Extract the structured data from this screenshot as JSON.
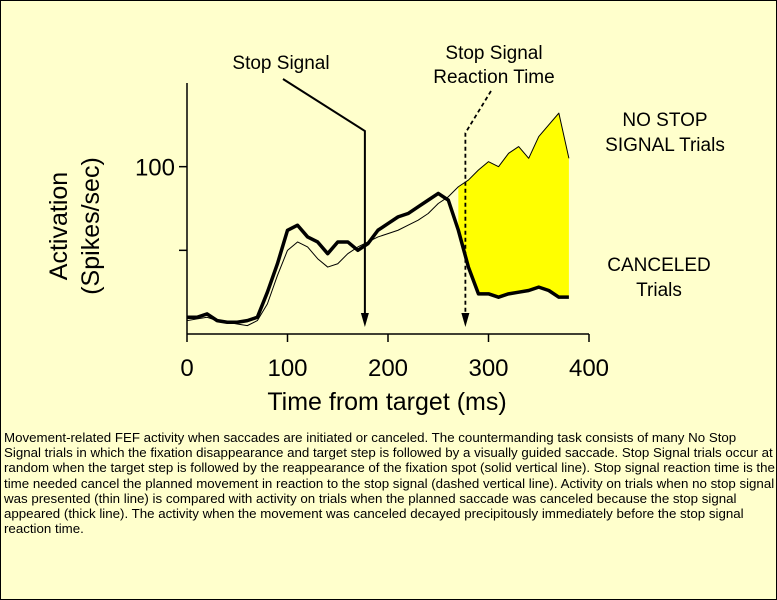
{
  "chart_data": {
    "type": "line",
    "title": "",
    "xlabel": "Time from target (ms)",
    "ylabel_line1": "Activation",
    "ylabel_line2": "(Spikes/sec)",
    "xlim": [
      0,
      400
    ],
    "ylim": [
      0,
      150
    ],
    "x_ticks": [
      0,
      100,
      200,
      300,
      400
    ],
    "x_tick_labels": [
      "0",
      "100",
      "200",
      "300",
      "400"
    ],
    "y_ticks": [
      50,
      100
    ],
    "y_tick_labels": [
      "",
      "100"
    ],
    "grid": false,
    "fill_color": "#FFFF00",
    "series": [
      {
        "name": "NO STOP SIGNAL Trials",
        "style": "thin",
        "x": [
          0,
          10,
          20,
          30,
          40,
          50,
          60,
          70,
          80,
          90,
          100,
          110,
          120,
          130,
          140,
          150,
          160,
          170,
          180,
          190,
          200,
          210,
          220,
          230,
          240,
          250,
          260,
          270,
          280,
          290,
          300,
          310,
          320,
          330,
          340,
          350,
          360,
          370,
          380
        ],
        "y": [
          8,
          9,
          10,
          8,
          7,
          6,
          5,
          8,
          18,
          35,
          50,
          55,
          52,
          45,
          40,
          42,
          48,
          52,
          55,
          58,
          60,
          62,
          65,
          68,
          72,
          78,
          82,
          88,
          92,
          98,
          103,
          100,
          108,
          112,
          105,
          118,
          125,
          132,
          105
        ]
      },
      {
        "name": "CANCELED Trials",
        "style": "thick",
        "x": [
          0,
          10,
          20,
          30,
          40,
          50,
          60,
          70,
          80,
          90,
          100,
          110,
          120,
          130,
          140,
          150,
          160,
          170,
          180,
          190,
          200,
          210,
          220,
          230,
          240,
          250,
          260,
          270,
          280,
          290,
          300,
          310,
          320,
          330,
          340,
          350,
          360,
          370,
          380
        ],
        "y": [
          10,
          10,
          12,
          8,
          7,
          7,
          8,
          10,
          25,
          42,
          62,
          65,
          58,
          55,
          48,
          55,
          55,
          50,
          54,
          62,
          66,
          70,
          72,
          76,
          80,
          84,
          80,
          62,
          40,
          24,
          24,
          22,
          24,
          25,
          26,
          28,
          26,
          22,
          22
        ]
      }
    ],
    "markers": [
      {
        "label": "Stop Signal",
        "x": 177,
        "style": "solid"
      },
      {
        "label_line1": "Stop Signal",
        "label_line2": "Reaction Time",
        "x": 277,
        "style": "dashed"
      }
    ],
    "annotations": [
      {
        "line1": "NO STOP",
        "line2": "SIGNAL Trials"
      },
      {
        "line1": "CANCELED",
        "line2": "Trials"
      }
    ]
  },
  "caption": "Movement-related FEF activity when saccades are initiated or canceled.  The countermanding task consists of many No Stop Signal trials in which the fixation disappearance and target step is followed by a visually guided saccade.  Stop Signal trials occur at random when the target step is followed by the reappearance of the fixation spot (solid vertical line).  Stop signal reaction time is the time needed cancel the planned movement in reaction to the stop signal (dashed vertical line).  Activity on trials when no stop signal was presented (thin line) is compared with activity on trials when the planned saccade was canceled because the stop signal appeared (thick line).  The activity when the movement was canceled decayed precipitously immediately before the stop signal reaction time."
}
